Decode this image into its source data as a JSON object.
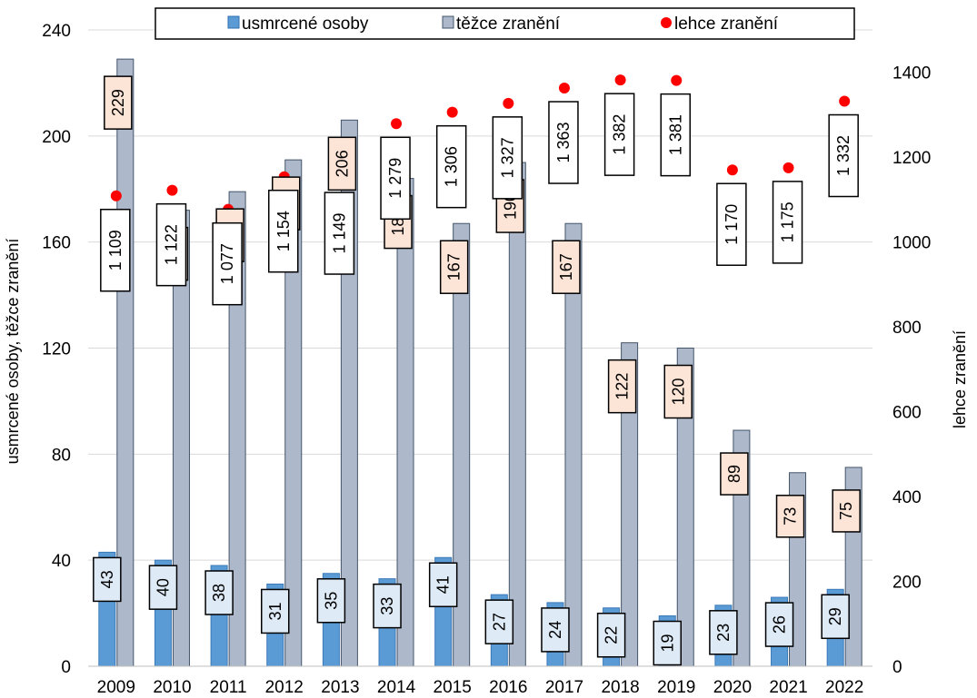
{
  "chart_data": {
    "type": "bar",
    "categories": [
      "2009",
      "2010",
      "2011",
      "2012",
      "2013",
      "2014",
      "2015",
      "2016",
      "2017",
      "2018",
      "2019",
      "2020",
      "2021",
      "2022"
    ],
    "series": [
      {
        "name": "usmrcené osoby",
        "axis": "left",
        "kind": "bar",
        "color": "#5b9bd5",
        "values": [
          43,
          40,
          38,
          31,
          35,
          33,
          41,
          27,
          24,
          22,
          19,
          23,
          26,
          29
        ],
        "labels": [
          "43",
          "40",
          "38",
          "31",
          "35",
          "33",
          "41",
          "27",
          "24",
          "22",
          "19",
          "23",
          "26",
          "29"
        ]
      },
      {
        "name": "těžce zranění",
        "axis": "left",
        "kind": "bar",
        "color": "#adb9ca",
        "values": [
          229,
          172,
          179,
          191,
          206,
          184,
          167,
          190,
          167,
          122,
          120,
          89,
          73,
          75
        ],
        "labels": [
          "229",
          "172",
          "179",
          "191",
          "206",
          "184",
          "167",
          "190",
          "167",
          "122",
          "120",
          "89",
          "73",
          "75"
        ]
      },
      {
        "name": "lehce zranění",
        "axis": "right",
        "kind": "point",
        "color": "#ff0000",
        "values": [
          1109,
          1122,
          1077,
          1154,
          1149,
          1279,
          1306,
          1327,
          1363,
          1382,
          1381,
          1170,
          1175,
          1332
        ],
        "labels": [
          "1 109",
          "1 122",
          "1 077",
          "1 154",
          "1 149",
          "1 279",
          "1 306",
          "1 327",
          "1 363",
          "1 382",
          "1 381",
          "1 170",
          "1 175",
          "1 332"
        ]
      }
    ],
    "ylabel": "usmrcené osoby, těžce zranění",
    "y2label": "lehce zranění",
    "ylim": [
      0,
      240
    ],
    "y2lim": [
      0,
      1500
    ],
    "yticks": [
      "0",
      "40",
      "80",
      "120",
      "160",
      "200",
      "240"
    ],
    "y2ticks": [
      "0",
      "200",
      "400",
      "600",
      "800",
      "1000",
      "1200",
      "1400"
    ],
    "grid": true,
    "legend_position": "top",
    "label_fill_killed": "#deebf7",
    "label_fill_serious": "#fce4d6"
  }
}
